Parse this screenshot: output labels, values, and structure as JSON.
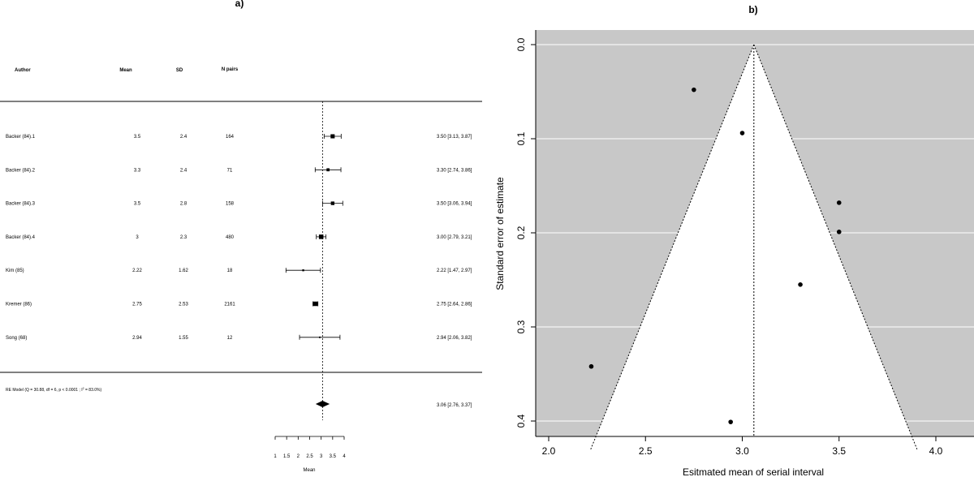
{
  "chart_data": [
    {
      "type": "forest",
      "panel_label": "a)",
      "columns": [
        "Author",
        "Mean",
        "SD",
        "N pairs"
      ],
      "rows": [
        {
          "author": "Backer (84).1",
          "mean": "3.5",
          "sd": "2.4",
          "n": "164",
          "estimate": 3.5,
          "lower": 3.13,
          "upper": 3.87,
          "ci_label": "3.50 [3.13, 3.87]",
          "weight": 0.9
        },
        {
          "author": "Backer (84).2",
          "mean": "3.3",
          "sd": "2.4",
          "n": "71",
          "estimate": 3.3,
          "lower": 2.74,
          "upper": 3.86,
          "ci_label": "3.30 [2.74, 3.86]",
          "weight": 0.6
        },
        {
          "author": "Backer (84).3",
          "mean": "3.5",
          "sd": "2.8",
          "n": "158",
          "estimate": 3.5,
          "lower": 3.06,
          "upper": 3.94,
          "ci_label": "3.50 [3.06, 3.94]",
          "weight": 0.75
        },
        {
          "author": "Backer (84).4",
          "mean": "3",
          "sd": "2.3",
          "n": "480",
          "estimate": 3.0,
          "lower": 2.79,
          "upper": 3.21,
          "ci_label": "3.00 [2.79, 3.21]",
          "weight": 1.0
        },
        {
          "author": "Kim (85)",
          "mean": "2.22",
          "sd": "1.62",
          "n": "18",
          "estimate": 2.22,
          "lower": 1.47,
          "upper": 2.97,
          "ci_label": "2.22 [1.47, 2.97]",
          "weight": 0.3
        },
        {
          "author": "Kremer (86)",
          "mean": "2.75",
          "sd": "2.53",
          "n": "2161",
          "estimate": 2.75,
          "lower": 2.64,
          "upper": 2.86,
          "ci_label": "2.75 [2.64, 2.86]",
          "weight": 1.0
        },
        {
          "author": "Song (68)",
          "mean": "2.94",
          "sd": "1.55",
          "n": "12",
          "estimate": 2.94,
          "lower": 2.06,
          "upper": 3.82,
          "ci_label": "2.94 [2.06, 3.82]",
          "weight": 0.2
        }
      ],
      "summary": {
        "label_prefix": "RE Model (Q = 30.88, df = 6, p < 0.0001 ; I",
        "label_sup": "2",
        "label_suffix": " = 83.0%)",
        "estimate": 3.06,
        "lower": 2.76,
        "upper": 3.37,
        "ci_label": "3.06 [2.76, 3.37]"
      },
      "reference_line": 3.06,
      "xlim": [
        1,
        4
      ],
      "xticks": [
        "1",
        "1.5",
        "2",
        "2.5",
        "3",
        "3.5",
        "4"
      ],
      "xlabel": "Mean"
    },
    {
      "type": "funnel",
      "panel_label": "b)",
      "xlabel": "Esitmated mean of serial interval",
      "ylabel": "Standard error of estimate",
      "xlim": [
        1.95,
        4.15
      ],
      "ylim": [
        0.0,
        0.41
      ],
      "y_reversed": true,
      "xticks": [
        "2.0",
        "2.5",
        "3.0",
        "3.5",
        "4.0"
      ],
      "yticks": [
        "0.0",
        "0.1",
        "0.2",
        "0.3",
        "0.4"
      ],
      "center": 3.06,
      "funnel_multiplier": 1.96,
      "grid": true,
      "points": [
        {
          "x": 2.75,
          "y": 0.048
        },
        {
          "x": 3.0,
          "y": 0.094
        },
        {
          "x": 3.5,
          "y": 0.168
        },
        {
          "x": 3.5,
          "y": 0.199
        },
        {
          "x": 3.3,
          "y": 0.255
        },
        {
          "x": 2.22,
          "y": 0.342
        },
        {
          "x": 2.94,
          "y": 0.401
        }
      ],
      "colors": {
        "background": "#c8c8c8",
        "funnel": "#ffffff",
        "grid": "#ffffff"
      }
    }
  ]
}
